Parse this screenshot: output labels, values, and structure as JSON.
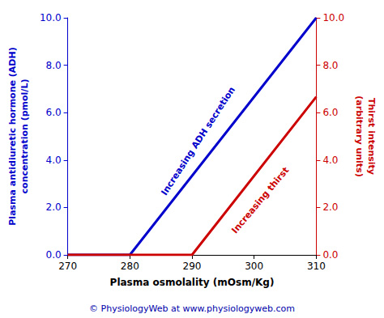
{
  "chart_data": {
    "type": "line",
    "xlabel": "Plasma osmolality (mOsm/Kg)",
    "ylabel": "Plasma antidiuretic hormone (ADH)\nconcentration (pmol/L)",
    "y2label": "Thirst intensity\n(arbitrary units)",
    "xlim": [
      270,
      310
    ],
    "xticks": [
      270,
      280,
      290,
      300,
      310
    ],
    "ylim": [
      0.0,
      10.0
    ],
    "yticks": [
      {
        "value": 0,
        "label": "0.0"
      },
      {
        "value": 2,
        "label": "2.0"
      },
      {
        "value": 4,
        "label": "4.0"
      },
      {
        "value": 6,
        "label": "6.0"
      },
      {
        "value": 8,
        "label": "8.0"
      },
      {
        "value": 10,
        "label": "10.0"
      }
    ],
    "y2lim": [
      0.0,
      10.0
    ],
    "y2ticks": [
      {
        "value": 0,
        "label": "0.0"
      },
      {
        "value": 2,
        "label": "2.0"
      },
      {
        "value": 4,
        "label": "4.0"
      },
      {
        "value": 6,
        "label": "6.0"
      },
      {
        "value": 8,
        "label": "8.0"
      },
      {
        "value": 10,
        "label": "10.0"
      }
    ],
    "grid": false,
    "series": [
      {
        "color": "#0000CC",
        "x": [
          270,
          280,
          310
        ],
        "values": [
          0.0,
          0.0,
          10.0
        ]
      },
      {
        "color": "#CC0000",
        "axis": "y2",
        "x": [
          270,
          290,
          310
        ],
        "values": [
          0.0,
          0.0,
          6.67
        ]
      }
    ],
    "annotations": [
      {
        "text": "Increasing ADH secretion",
        "x": 291,
        "y": 4.8,
        "color": "#0000CC"
      },
      {
        "text": "Increasing thirst",
        "x": 301,
        "y": 2.3,
        "color": "#CC0000"
      }
    ],
    "footer": {
      "text": "© PhysiologyWeb at www.physiologyweb.com",
      "color": "#0000AA"
    }
  }
}
